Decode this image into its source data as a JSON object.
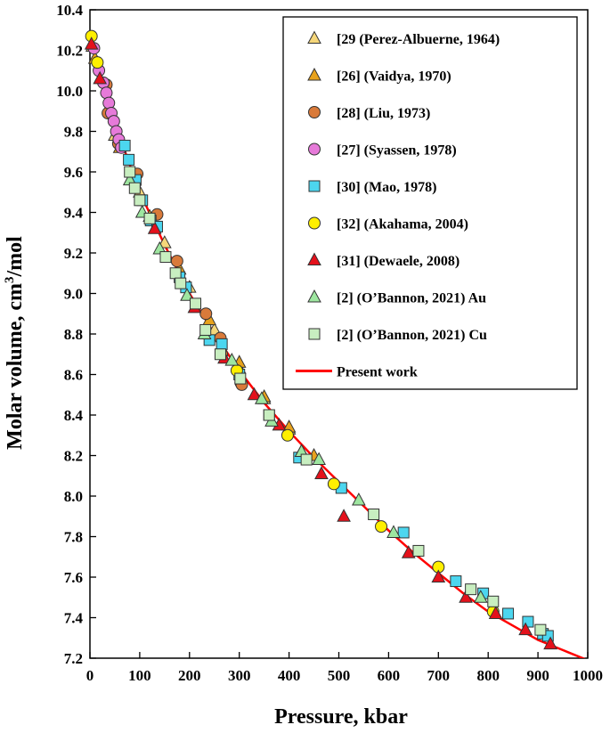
{
  "chart_data": {
    "type": "scatter",
    "title": "",
    "xlabel": "Pressure, kbar",
    "ylabel_main": "Molar volume, cm",
    "ylabel_sup": "3",
    "ylabel_tail": "/mol",
    "xlim": [
      0,
      1000
    ],
    "ylim": [
      7.2,
      10.4
    ],
    "x_ticks": [
      0,
      100,
      200,
      300,
      400,
      500,
      600,
      700,
      800,
      900,
      1000
    ],
    "y_ticks": [
      7.2,
      7.4,
      7.6,
      7.8,
      8.0,
      8.2,
      8.4,
      8.6,
      8.8,
      9.0,
      9.2,
      9.4,
      9.6,
      9.8,
      10.0,
      10.2,
      10.4
    ],
    "y_tick_labels": [
      "7.2",
      "7.4",
      "7.6",
      "7.8",
      "8.0",
      "8.2",
      "8.4",
      "8.6",
      "8.8",
      "9.0",
      "9.2",
      "9.4",
      "9.6",
      "9.8",
      "10.0",
      "10.2",
      "10.4"
    ],
    "grid": false,
    "legend_position": "top-right",
    "series": [
      {
        "name": "[29 (Perez-Albuerne, 1964)",
        "marker": "triangle",
        "color": "#f5d67a",
        "points": [
          [
            5,
            10.22
          ],
          [
            50,
            9.78
          ],
          [
            100,
            9.5
          ],
          [
            150,
            9.25
          ],
          [
            200,
            9.03
          ],
          [
            250,
            8.82
          ],
          [
            300,
            8.63
          ],
          [
            350,
            8.48
          ],
          [
            400,
            8.33
          ]
        ]
      },
      {
        "name": "[26] (Vaidya, 1970)",
        "marker": "triangle",
        "color": "#e8a21c",
        "points": [
          [
            10,
            10.16
          ],
          [
            60,
            9.72
          ],
          [
            120,
            9.38
          ],
          [
            180,
            9.12
          ],
          [
            240,
            8.87
          ],
          [
            300,
            8.66
          ],
          [
            350,
            8.49
          ],
          [
            400,
            8.34
          ],
          [
            450,
            8.2
          ]
        ]
      },
      {
        "name": "[28] (Liu, 1973)",
        "marker": "circle",
        "color": "#d97a3a",
        "points": [
          [
            33,
            10.03
          ],
          [
            36,
            9.89
          ],
          [
            57,
            9.74
          ],
          [
            95,
            9.59
          ],
          [
            135,
            9.39
          ],
          [
            175,
            9.16
          ],
          [
            233,
            8.9
          ],
          [
            262,
            8.78
          ],
          [
            265,
            8.7
          ],
          [
            303,
            8.56
          ],
          [
            305,
            8.55
          ]
        ]
      },
      {
        "name": "[27] (Syassen, 1978)",
        "marker": "circle",
        "color": "#e67ad9",
        "points": [
          [
            8,
            10.21
          ],
          [
            18,
            10.1
          ],
          [
            27,
            10.04
          ],
          [
            33,
            9.99
          ],
          [
            38,
            9.94
          ],
          [
            43,
            9.89
          ],
          [
            48,
            9.85
          ],
          [
            53,
            9.8
          ],
          [
            58,
            9.76
          ],
          [
            63,
            9.72
          ]
        ]
      },
      {
        "name": "[30] (Mao, 1978)",
        "marker": "square",
        "color": "#4cd6ef",
        "points": [
          [
            70,
            9.73
          ],
          [
            78,
            9.66
          ],
          [
            92,
            9.56
          ],
          [
            105,
            9.46
          ],
          [
            122,
            9.36
          ],
          [
            135,
            9.33
          ],
          [
            180,
            9.08
          ],
          [
            193,
            9.03
          ],
          [
            240,
            8.77
          ],
          [
            265,
            8.75
          ],
          [
            300,
            8.6
          ],
          [
            360,
            8.4
          ],
          [
            420,
            8.19
          ],
          [
            505,
            8.04
          ],
          [
            630,
            7.82
          ],
          [
            735,
            7.58
          ],
          [
            790,
            7.52
          ],
          [
            840,
            7.42
          ],
          [
            880,
            7.38
          ],
          [
            910,
            7.32
          ],
          [
            920,
            7.31
          ]
        ]
      },
      {
        "name": "[32] (Akahama, 2004)",
        "marker": "circle",
        "color": "#ffef00",
        "points": [
          [
            3,
            10.27
          ],
          [
            15,
            10.14
          ],
          [
            295,
            8.62
          ],
          [
            397,
            8.3
          ],
          [
            490,
            8.06
          ],
          [
            585,
            7.85
          ],
          [
            700,
            7.65
          ],
          [
            810,
            7.43
          ]
        ]
      },
      {
        "name": "[31] (Dewaele, 2008)",
        "marker": "triangle",
        "color": "#e4111b",
        "points": [
          [
            3,
            10.23
          ],
          [
            20,
            10.06
          ],
          [
            130,
            9.32
          ],
          [
            210,
            8.93
          ],
          [
            270,
            8.68
          ],
          [
            330,
            8.5
          ],
          [
            380,
            8.35
          ],
          [
            425,
            8.22
          ],
          [
            465,
            8.11
          ],
          [
            510,
            7.9
          ],
          [
            640,
            7.72
          ],
          [
            700,
            7.6
          ],
          [
            755,
            7.5
          ],
          [
            815,
            7.42
          ],
          [
            875,
            7.34
          ],
          [
            925,
            7.27
          ]
        ]
      },
      {
        "name": "[2] (O’Bannon, 2021) Au",
        "marker": "triangle",
        "color": "#9ee6a0",
        "points": [
          [
            80,
            9.56
          ],
          [
            105,
            9.4
          ],
          [
            140,
            9.22
          ],
          [
            195,
            8.99
          ],
          [
            230,
            8.8
          ],
          [
            285,
            8.67
          ],
          [
            345,
            8.48
          ],
          [
            365,
            8.37
          ],
          [
            425,
            8.22
          ],
          [
            460,
            8.18
          ],
          [
            540,
            7.98
          ],
          [
            610,
            7.82
          ],
          [
            785,
            7.5
          ]
        ]
      },
      {
        "name": "[2] (O’Bannon, 2021) Cu",
        "marker": "square",
        "color": "#c8eec0",
        "points": [
          [
            80,
            9.6
          ],
          [
            90,
            9.52
          ],
          [
            100,
            9.46
          ],
          [
            120,
            9.37
          ],
          [
            152,
            9.18
          ],
          [
            172,
            9.1
          ],
          [
            182,
            9.05
          ],
          [
            212,
            8.95
          ],
          [
            232,
            8.82
          ],
          [
            262,
            8.7
          ],
          [
            302,
            8.58
          ],
          [
            360,
            8.4
          ],
          [
            435,
            8.18
          ],
          [
            570,
            7.91
          ],
          [
            660,
            7.73
          ],
          [
            765,
            7.54
          ],
          [
            810,
            7.48
          ],
          [
            905,
            7.34
          ]
        ]
      }
    ],
    "line": {
      "name": "Present work",
      "color": "#ff0000",
      "points": [
        [
          0,
          10.26
        ],
        [
          20,
          10.08
        ],
        [
          50,
          9.84
        ],
        [
          100,
          9.5
        ],
        [
          150,
          9.24
        ],
        [
          200,
          9.0
        ],
        [
          250,
          8.8
        ],
        [
          300,
          8.62
        ],
        [
          350,
          8.46
        ],
        [
          400,
          8.32
        ],
        [
          450,
          8.19
        ],
        [
          500,
          8.07
        ],
        [
          550,
          7.95
        ],
        [
          600,
          7.83
        ],
        [
          650,
          7.72
        ],
        [
          700,
          7.62
        ],
        [
          750,
          7.52
        ],
        [
          800,
          7.43
        ],
        [
          850,
          7.36
        ],
        [
          900,
          7.29
        ],
        [
          950,
          7.24
        ],
        [
          1000,
          7.19
        ]
      ]
    }
  }
}
